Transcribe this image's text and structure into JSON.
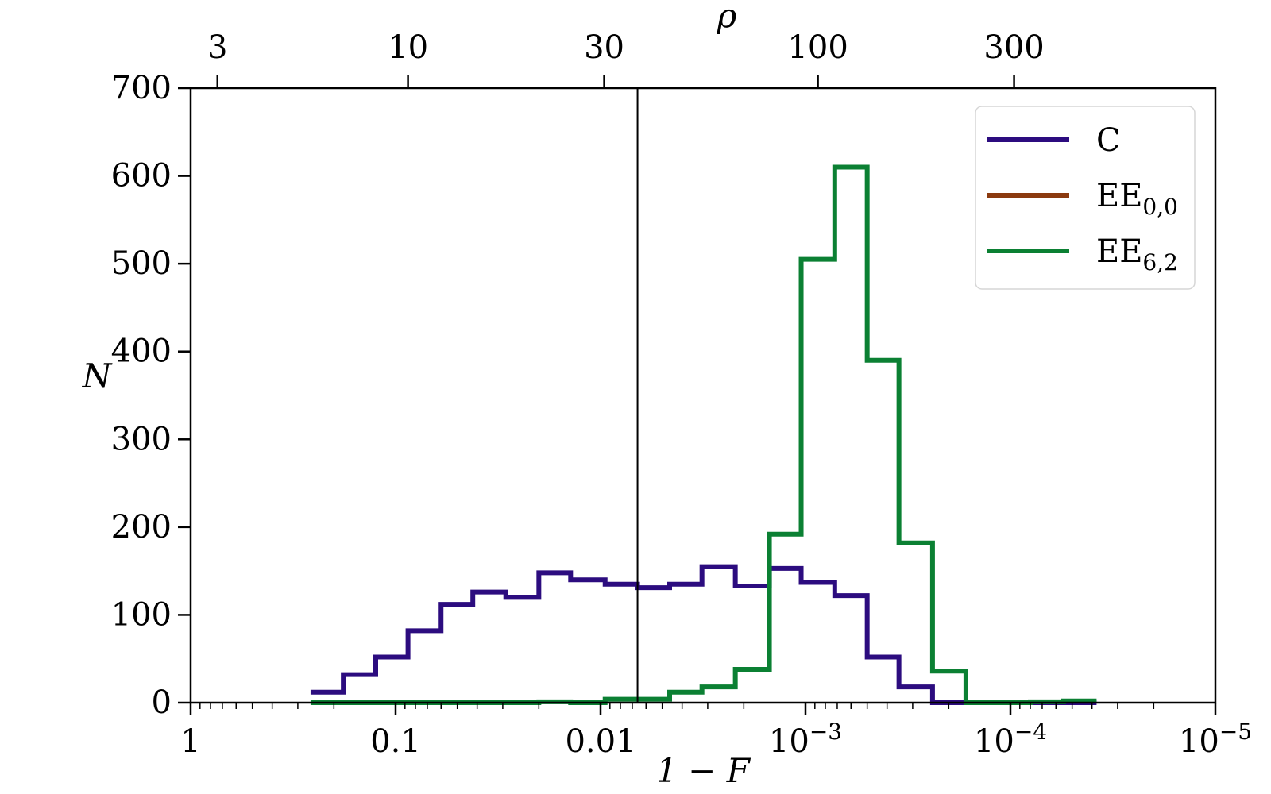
{
  "chart_data": {
    "type": "histogram",
    "xlabel": "1 − F",
    "ylabel": "N",
    "top_xlabel": "ρ",
    "x_scale": "log",
    "x_reversed": true,
    "xlim": [
      1,
      1e-05
    ],
    "ylim": [
      0,
      700
    ],
    "yticks": [
      0,
      100,
      200,
      300,
      400,
      500,
      600,
      700
    ],
    "xticks": [
      {
        "value": 1,
        "label": "1",
        "sup": ""
      },
      {
        "value": 0.1,
        "label": "0.1",
        "sup": ""
      },
      {
        "value": 0.01,
        "label": "0.01",
        "sup": ""
      },
      {
        "value": 0.001,
        "label": "10",
        "sup": "−3"
      },
      {
        "value": 0.0001,
        "label": "10",
        "sup": "−4"
      },
      {
        "value": 1e-05,
        "label": "10",
        "sup": "−5"
      }
    ],
    "top_ticks": [
      {
        "value": 3,
        "x_equiv": 0.74,
        "label": "3"
      },
      {
        "value": 10,
        "x_equiv": 0.087,
        "label": "10"
      },
      {
        "value": 30,
        "x_equiv": 0.0096,
        "label": "30"
      },
      {
        "value": 100,
        "x_equiv": 0.00087,
        "label": "100"
      },
      {
        "value": 300,
        "x_equiv": 9.6e-05,
        "label": "300"
      }
    ],
    "vline_x": 0.0066,
    "bin_edges": [
      0.26,
      0.18,
      0.125,
      0.087,
      0.06,
      0.042,
      0.029,
      0.02,
      0.014,
      0.0095,
      0.0066,
      0.0046,
      0.0032,
      0.0022,
      0.0015,
      0.00105,
      0.00072,
      0.0005,
      0.00035,
      0.00024,
      0.000165,
      0.000115,
      8e-05,
      5.5e-05,
      3.8e-05
    ],
    "series": [
      {
        "name": "C",
        "label_main": "C",
        "label_sub": "",
        "color": "#2c0c7f",
        "counts": [
          12,
          32,
          52,
          82,
          112,
          126,
          120,
          148,
          140,
          135,
          131,
          135,
          155,
          133,
          153,
          137,
          122,
          52,
          18,
          0,
          0,
          0,
          0,
          0
        ]
      },
      {
        "name": "EE0,0",
        "label_main": "EE",
        "label_sub": "0,0",
        "color": "#8b3a0f",
        "counts": [
          0,
          0,
          0,
          0,
          0,
          0,
          0,
          0,
          0,
          0,
          0,
          0,
          0,
          0,
          0,
          0,
          0,
          0,
          0,
          0,
          0,
          0,
          0,
          0
        ]
      },
      {
        "name": "EE6,2",
        "label_main": "EE",
        "label_sub": "6,2",
        "color": "#0b8033",
        "counts": [
          0,
          0,
          0,
          0,
          0,
          0,
          0,
          1,
          0,
          4,
          4,
          12,
          18,
          38,
          192,
          505,
          610,
          390,
          182,
          36,
          0,
          0,
          1,
          2
        ]
      }
    ],
    "legend_position": "top-right"
  }
}
